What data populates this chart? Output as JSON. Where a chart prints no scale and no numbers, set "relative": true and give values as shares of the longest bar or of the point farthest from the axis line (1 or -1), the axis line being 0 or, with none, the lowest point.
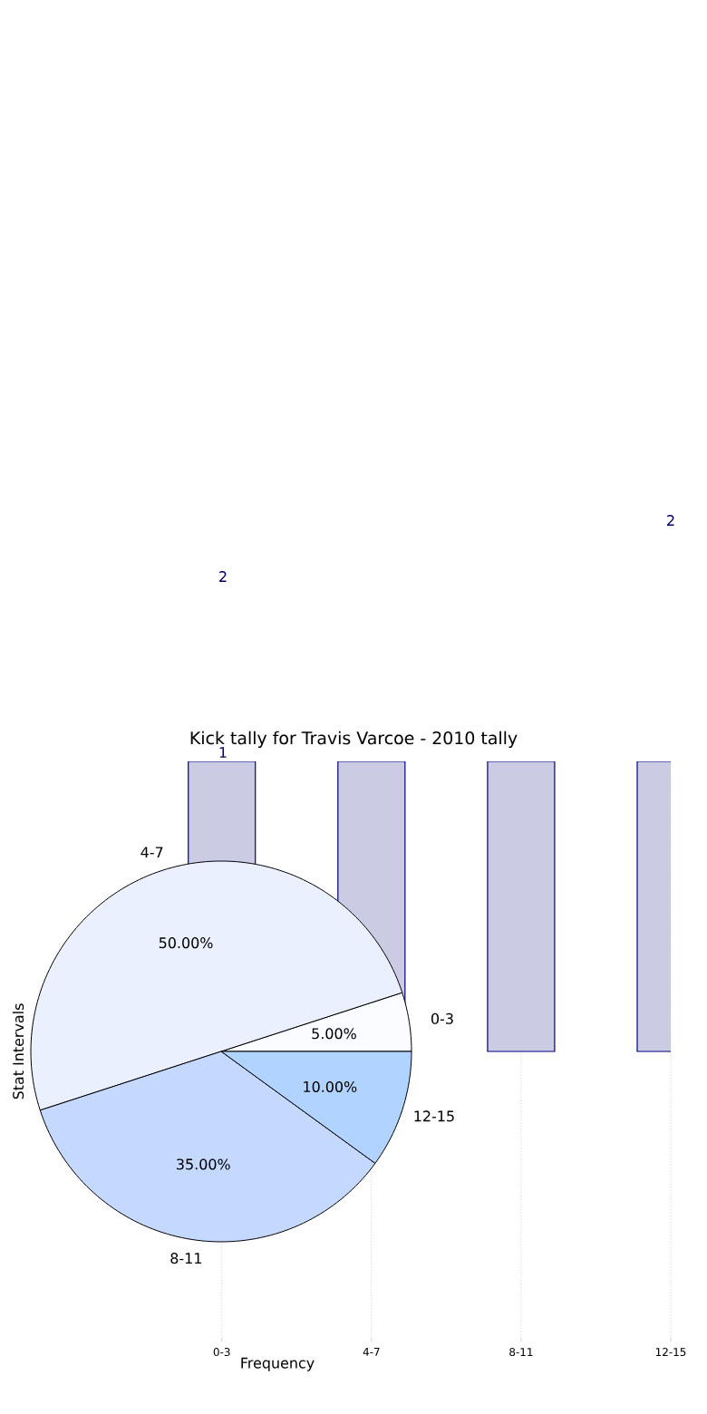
{
  "chart_data": [
    {
      "type": "bar",
      "title": "Kick tally for Travis Varcoe - 2010 tally",
      "xlabel": "Frequency",
      "ylabel": "Stat Intervals",
      "categories": [
        "0-3",
        "4-7",
        "8-11",
        "12-15"
      ],
      "values": [
        1,
        1,
        1,
        1
      ],
      "relative": true,
      "color": "#cbcbe3",
      "grid": "x",
      "annotations": [
        "2",
        "1",
        "2"
      ]
    },
    {
      "type": "pie",
      "categories": [
        "0-3",
        "4-7",
        "8-11",
        "12-15"
      ],
      "values": [
        5,
        50,
        35,
        10
      ],
      "colors": [
        "#fbfcff",
        "#eaf0fe",
        "#c5d9ff",
        "#b0d4ff"
      ],
      "value_labels": [
        "5.00%",
        "50.00%",
        "35.00%",
        "10.00%"
      ]
    }
  ]
}
